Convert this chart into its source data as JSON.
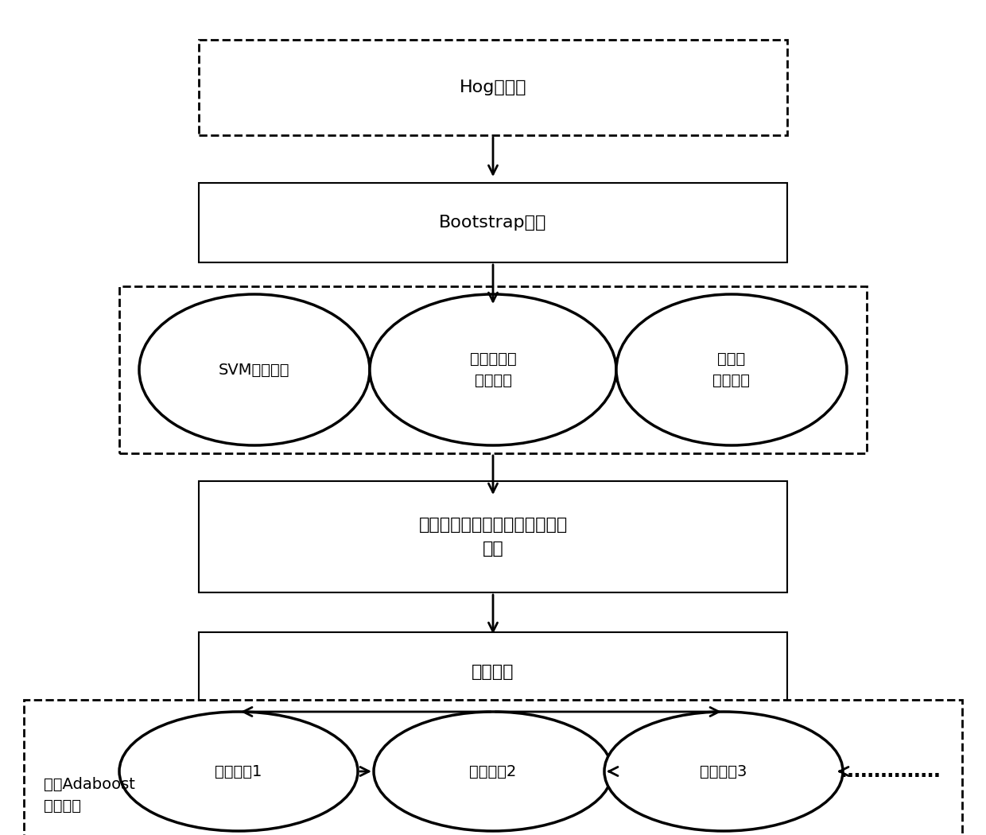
{
  "bg_color": "#ffffff",
  "line_color": "#000000",
  "box1_label": "Hog特征集",
  "box2_label": "Bootstrap抽样",
  "ellipse1_label": "SVM弱分类器",
  "ellipse2_label": "多层感知机\n弱分类器",
  "ellipse3_label": "决策树\n弱分类器",
  "box3_label": "选择在测试集上正确率最高的分\n类器",
  "box4_label": "更新权重",
  "bottom_ellipse1_label": "弱分类器1",
  "bottom_ellipse2_label": "弱分类器2",
  "bottom_ellipse3_label": "弱分类器3",
  "dots_label": "……………",
  "adaboost_label": "异质Adaboost\n强分类器",
  "font_size": 16,
  "font_size_small": 14
}
